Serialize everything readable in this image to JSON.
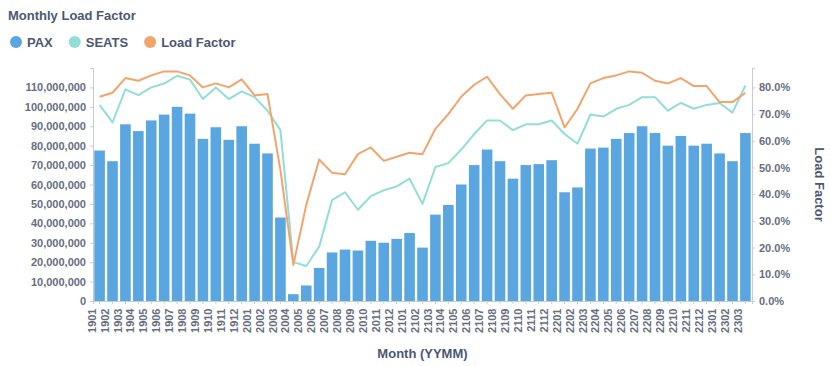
{
  "chart_data": {
    "type": "bar",
    "title": "Monthly Load Factor",
    "x_label": "Month (YYMM)",
    "y2_label": "Load Factor",
    "categories": [
      "1901",
      "1902",
      "1903",
      "1904",
      "1905",
      "1906",
      "1907",
      "1908",
      "1909",
      "1910",
      "1911",
      "1912",
      "2001",
      "2002",
      "2003",
      "2004",
      "2005",
      "2006",
      "2007",
      "2008",
      "2009",
      "2010",
      "2011",
      "2012",
      "2101",
      "2102",
      "2103",
      "2104",
      "2105",
      "2106",
      "2107",
      "2108",
      "2109",
      "2110",
      "2111",
      "2112",
      "2201",
      "2202",
      "2203",
      "2204",
      "2205",
      "2206",
      "2207",
      "2208",
      "2209",
      "2210",
      "2211",
      "2212",
      "2301",
      "2302",
      "2303"
    ],
    "series": [
      {
        "name": "PAX",
        "type": "bar",
        "color": "#5aa6e0",
        "values": [
          77500000,
          72000000,
          91000000,
          87500000,
          93000000,
          96000000,
          100000000,
          96500000,
          83500000,
          89500000,
          83000000,
          90000000,
          81000000,
          76000000,
          43000000,
          3500000,
          8000000,
          17000000,
          25000000,
          26500000,
          26000000,
          31000000,
          30000000,
          32000000,
          35000000,
          27500000,
          44500000,
          49500000,
          60000000,
          70000000,
          78000000,
          72000000,
          63000000,
          70000000,
          70500000,
          72500000,
          56000000,
          58500000,
          78500000,
          79000000,
          83500000,
          86500000,
          90000000,
          86500000,
          80000000,
          85000000,
          80000000,
          81000000,
          76000000,
          72000000,
          86500000
        ]
      },
      {
        "name": "SEATS",
        "type": "line",
        "color": "#93ddd8",
        "values": [
          101000000,
          92000000,
          109000000,
          106000000,
          110000000,
          112000000,
          116000000,
          114000000,
          104000000,
          110000000,
          104000000,
          108000000,
          105000000,
          98000000,
          88000000,
          20000000,
          18000000,
          28000000,
          52000000,
          56000000,
          47000000,
          54000000,
          57000000,
          59000000,
          63000000,
          50000000,
          69000000,
          71000000,
          78000000,
          86000000,
          93000000,
          93000000,
          88000000,
          91000000,
          91000000,
          93000000,
          86000000,
          81000000,
          96000000,
          95000000,
          99000000,
          101000000,
          105000000,
          105000000,
          98000000,
          102000000,
          99000000,
          101000000,
          102000000,
          97000000,
          111000000
        ]
      },
      {
        "name": "Load Factor",
        "type": "line",
        "axis": "y2",
        "color": "#f2a46b",
        "values": [
          76.5,
          78,
          83.5,
          82.5,
          84.5,
          86,
          86,
          84.5,
          80,
          81.5,
          80,
          83,
          77,
          77.5,
          49,
          13.5,
          36,
          53,
          48,
          47.5,
          55,
          57.5,
          52.5,
          54,
          55.5,
          55,
          64.5,
          70,
          76.5,
          81,
          84,
          77.5,
          72,
          77,
          77.5,
          78,
          65,
          72,
          81.5,
          83.5,
          84.5,
          86,
          85.5,
          82.5,
          81.5,
          83.5,
          80.5,
          80.5,
          74.5,
          74.5,
          78
        ]
      }
    ],
    "ylim": [
      0,
      120000000
    ],
    "yticks": [
      0,
      {
        "value": 10000000,
        "label": "10,000,000"
      },
      {
        "value": 20000000,
        "label": "20,000,000"
      },
      {
        "value": 30000000,
        "label": "30,000,000"
      },
      {
        "value": 40000000,
        "label": "40,000,000"
      },
      {
        "value": 50000000,
        "label": "50,000,000"
      },
      {
        "value": 60000000,
        "label": "60,000,000"
      },
      {
        "value": 70000000,
        "label": "70,000,000"
      },
      {
        "value": 80000000,
        "label": "80,000,000"
      },
      {
        "value": 90000000,
        "label": "90,000,000"
      },
      {
        "value": 100000000,
        "label": "100,000,000"
      },
      {
        "value": 110000000,
        "label": "110,000,000"
      }
    ],
    "y2lim": [
      0,
      87.27
    ],
    "y2ticks": [
      {
        "value": 0,
        "label": "0.0%"
      },
      {
        "value": 10,
        "label": "10.0%"
      },
      {
        "value": 20,
        "label": "20.0%"
      },
      {
        "value": 30,
        "label": "30.0%"
      },
      {
        "value": 40,
        "label": "40.0%"
      },
      {
        "value": 50,
        "label": "50.0%"
      },
      {
        "value": 60,
        "label": "60.0%"
      },
      {
        "value": 70,
        "label": "70.0%"
      },
      {
        "value": 80,
        "label": "80.0%"
      }
    ],
    "grid": false,
    "legend": "top-left"
  }
}
